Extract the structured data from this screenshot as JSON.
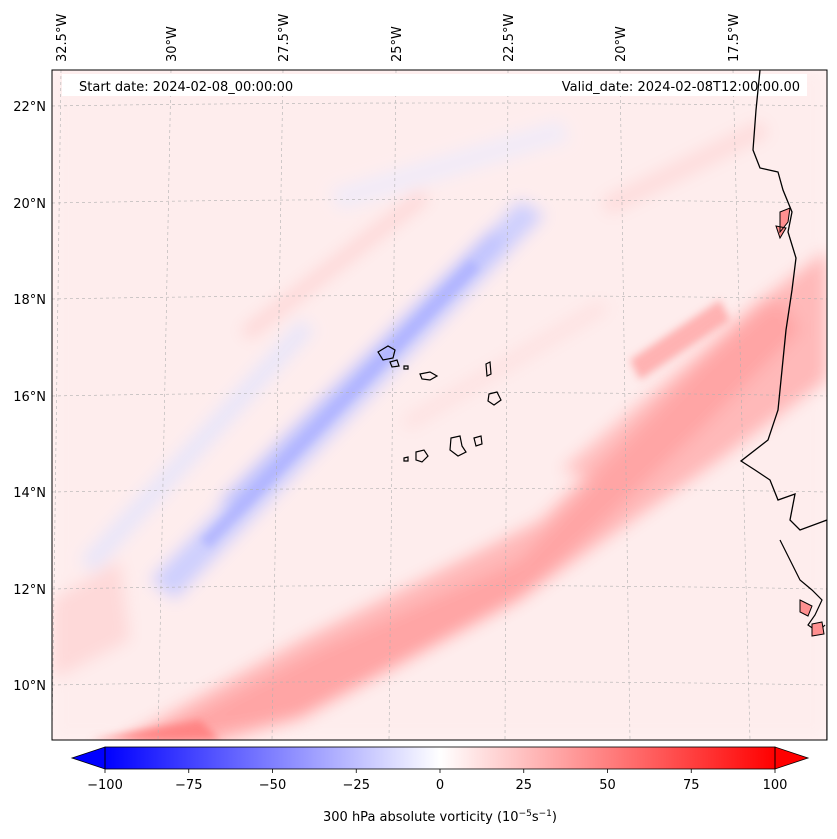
{
  "header": {
    "start_date": "Start date: 2024-02-08_00:00:00",
    "valid_date": "Valid_date: 2024-02-08T12:00:00.00"
  },
  "lon_ticks": [
    "32.5°W",
    "30°W",
    "27.5°W",
    "25°W",
    "22.5°W",
    "20°W",
    "17.5°W"
  ],
  "lat_ticks": [
    "22°N",
    "20°N",
    "18°N",
    "16°N",
    "14°N",
    "12°N",
    "10°N"
  ],
  "colorbar": {
    "ticks": [
      "−100",
      "−75",
      "−50",
      "−25",
      "0",
      "25",
      "50",
      "75",
      "100"
    ],
    "label": "300 hPa absolute vorticity (10",
    "label_exp1": "−5",
    "label_mid": "s",
    "label_exp2": "−1",
    "label_end": ")",
    "min": -100,
    "max": 100,
    "colors": {
      "negative": "#0000ff",
      "zero": "#ffffff",
      "positive": "#ff0000"
    }
  },
  "map": {
    "coastline_color": "#000000",
    "gridline_color": "#b0b0b0"
  }
}
